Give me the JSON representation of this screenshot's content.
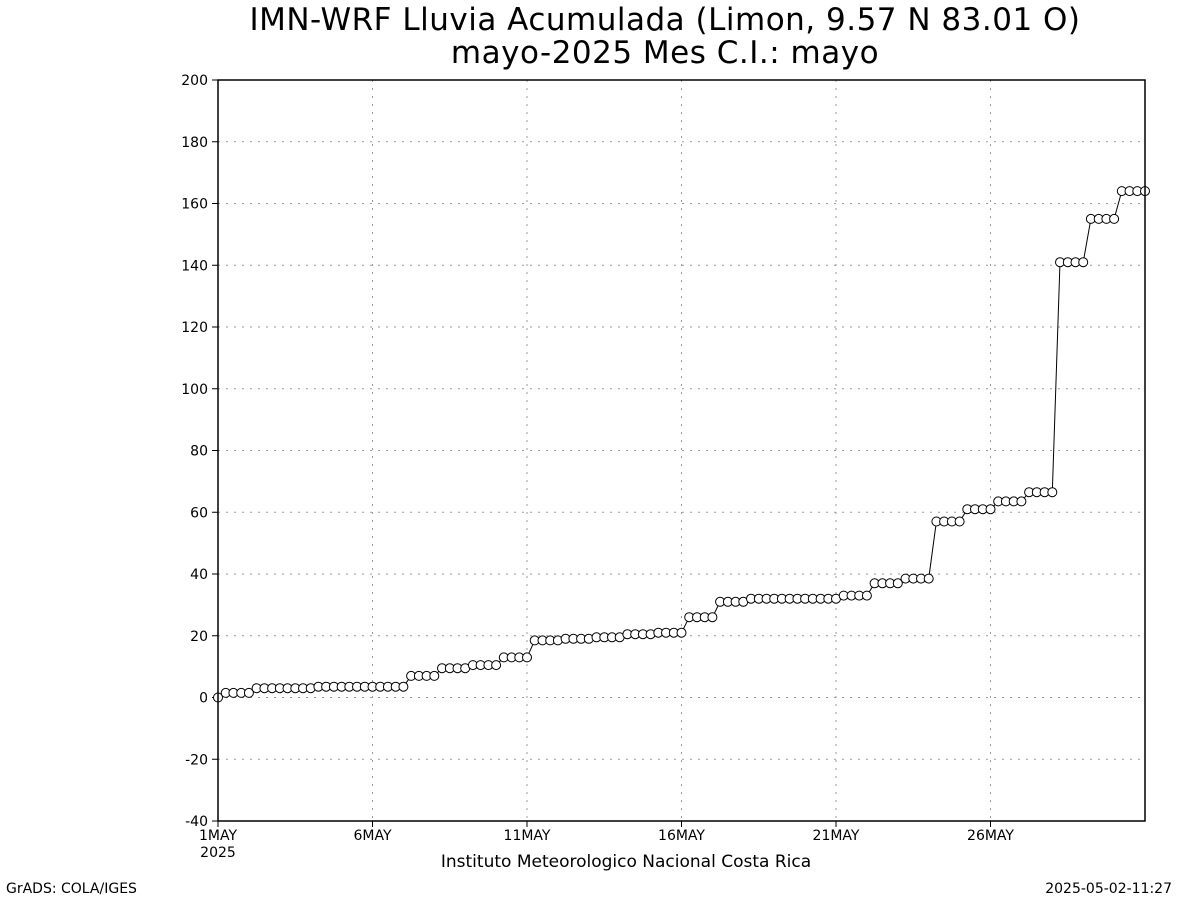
{
  "header": {
    "title_line1": "IMN-WRF  Lluvia Acumulada (Limon, 9.57  N 83.01  O)",
    "title_line2": "mayo-2025 Mes C.I.: mayo"
  },
  "footer": {
    "left": "GrADS: COLA/IGES",
    "center": "Instituto Meteorologico Nacional Costa Rica",
    "right": "2025-05-02-11:27"
  },
  "chart_data": {
    "type": "line",
    "title": "IMN-WRF  Lluvia Acumulada (Limon, 9.57  N 83.01  O)",
    "subtitle": "mayo-2025 Mes C.I.: mayo",
    "xlabel": "",
    "ylabel": "",
    "ylim": [
      -40,
      200
    ],
    "yticks": [
      -40,
      -20,
      0,
      20,
      40,
      60,
      80,
      100,
      120,
      140,
      160,
      180,
      200
    ],
    "xlim_days": [
      1,
      31
    ],
    "xticks": [
      {
        "day": 1,
        "label": "1MAY",
        "sub": "2025"
      },
      {
        "day": 6,
        "label": "6MAY",
        "sub": ""
      },
      {
        "day": 11,
        "label": "11MAY",
        "sub": ""
      },
      {
        "day": 16,
        "label": "16MAY",
        "sub": ""
      },
      {
        "day": 21,
        "label": "21MAY",
        "sub": ""
      },
      {
        "day": 26,
        "label": "26MAY",
        "sub": ""
      }
    ],
    "grid": true,
    "marker": "open-circle",
    "line_color": "#000000",
    "grid_color": "#9a9a9a",
    "step_hours": 6,
    "series": [
      {
        "values": [
          0,
          1.5,
          1.5,
          1.5,
          1.5,
          3,
          3,
          3,
          3,
          3,
          3,
          3,
          3,
          3.5,
          3.5,
          3.5,
          3.5,
          3.5,
          3.5,
          3.5,
          3.5,
          3.5,
          3.5,
          3.5,
          3.5,
          7,
          7,
          7,
          7,
          9.5,
          9.5,
          9.5,
          9.5,
          10.5,
          10.5,
          10.5,
          10.5,
          13,
          13,
          13,
          13,
          18.5,
          18.5,
          18.5,
          18.5,
          19,
          19,
          19,
          19,
          19.5,
          19.5,
          19.5,
          19.5,
          20.5,
          20.5,
          20.5,
          20.5,
          21,
          21,
          21,
          21,
          26,
          26,
          26,
          26,
          31,
          31,
          31,
          31,
          32,
          32,
          32,
          32,
          32,
          32,
          32,
          32,
          32,
          32,
          32,
          32,
          33,
          33,
          33,
          33,
          37,
          37,
          37,
          37,
          38.5,
          38.5,
          38.5,
          38.5,
          57,
          57,
          57,
          57,
          61,
          61,
          61,
          61,
          63.5,
          63.5,
          63.5,
          63.5,
          66.5,
          66.5,
          66.5,
          66.5,
          141,
          141,
          141,
          141,
          155,
          155,
          155,
          155,
          164,
          164,
          164,
          164
        ]
      }
    ]
  }
}
